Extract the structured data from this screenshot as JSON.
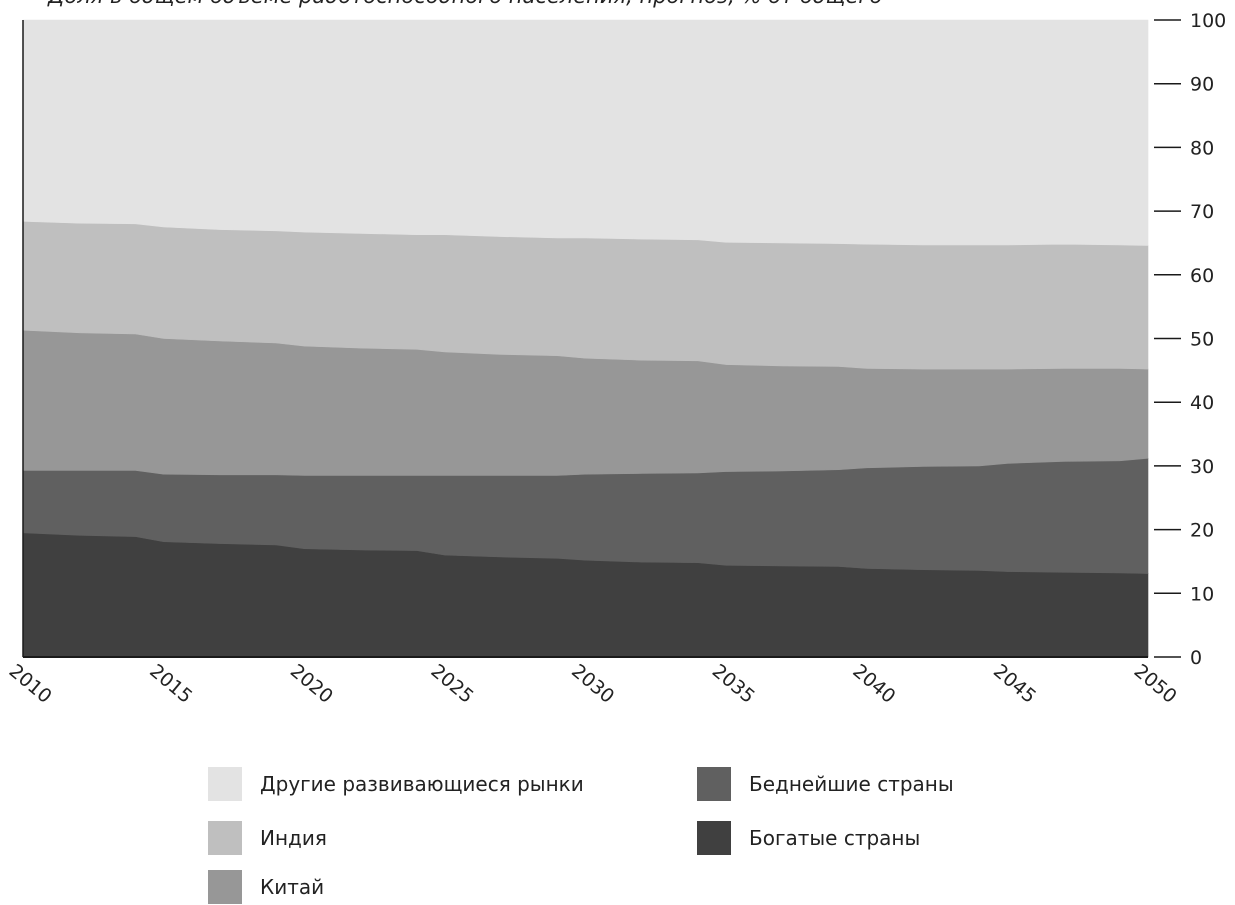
{
  "chart_data": {
    "type": "area",
    "title": "Доля в общем объеме работоспособного населения, прогноз, % от общего",
    "xlabel": "",
    "ylabel": "",
    "x": [
      2010,
      2012,
      2014,
      2015,
      2017,
      2019,
      2020,
      2022,
      2024,
      2025,
      2027,
      2029,
      2030,
      2032,
      2034,
      2035,
      2037,
      2039,
      2040,
      2042,
      2044,
      2045,
      2047,
      2049,
      2050
    ],
    "x_ticks": [
      2010,
      2015,
      2020,
      2025,
      2030,
      2035,
      2040,
      2045,
      2050
    ],
    "y_ticks": [
      0,
      10,
      20,
      30,
      40,
      50,
      60,
      70,
      80,
      90,
      100
    ],
    "ylim": [
      0,
      100
    ],
    "y_axis_position": "right",
    "grid": false,
    "stacked": true,
    "legend_position": "bottom",
    "series": [
      {
        "name": "Богатые страны",
        "color": "#404040",
        "values": [
          19.5,
          19.1,
          18.9,
          18.1,
          17.8,
          17.6,
          17.0,
          16.8,
          16.7,
          16.0,
          15.7,
          15.5,
          15.2,
          14.9,
          14.8,
          14.4,
          14.3,
          14.2,
          13.9,
          13.7,
          13.6,
          13.4,
          13.3,
          13.2,
          13.1
        ]
      },
      {
        "name": "Беднейшие страны",
        "color": "#606060",
        "values": [
          9.8,
          10.2,
          10.4,
          10.6,
          10.8,
          11.0,
          11.5,
          11.7,
          11.8,
          12.5,
          12.8,
          13.0,
          13.5,
          13.9,
          14.1,
          14.7,
          14.9,
          15.2,
          15.8,
          16.2,
          16.4,
          17.0,
          17.4,
          17.6,
          18.1
        ]
      },
      {
        "name": "Китай",
        "color": "#979797",
        "values": [
          22.0,
          21.6,
          21.4,
          21.3,
          21.0,
          20.7,
          20.3,
          20.0,
          19.8,
          19.4,
          19.0,
          18.8,
          18.2,
          17.8,
          17.6,
          16.8,
          16.5,
          16.2,
          15.6,
          15.3,
          15.2,
          14.8,
          14.6,
          14.5,
          14.0
        ]
      },
      {
        "name": "Индия",
        "color": "#bfbfbf",
        "values": [
          17.1,
          17.2,
          17.3,
          17.5,
          17.5,
          17.6,
          17.9,
          18.0,
          18.0,
          18.4,
          18.5,
          18.5,
          18.9,
          19.0,
          19.0,
          19.2,
          19.3,
          19.3,
          19.5,
          19.5,
          19.5,
          19.5,
          19.5,
          19.4,
          19.4
        ]
      },
      {
        "name": "Другие развивающиеся рынки",
        "color": "#e3e3e3",
        "values": [
          31.6,
          31.9,
          32.0,
          32.5,
          32.9,
          33.1,
          33.3,
          33.5,
          33.7,
          33.7,
          34.0,
          34.2,
          34.2,
          34.4,
          34.5,
          34.9,
          35.0,
          35.1,
          35.2,
          35.3,
          35.3,
          35.3,
          35.2,
          35.3,
          35.4
        ]
      }
    ],
    "legend": [
      {
        "name": "Другие развивающиеся рынки",
        "color": "#e3e3e3"
      },
      {
        "name": "Индия",
        "color": "#bfbfbf"
      },
      {
        "name": "Китай",
        "color": "#979797"
      },
      {
        "name": "Беднейшие страны",
        "color": "#606060"
      },
      {
        "name": "Богатые страны",
        "color": "#404040"
      }
    ]
  }
}
